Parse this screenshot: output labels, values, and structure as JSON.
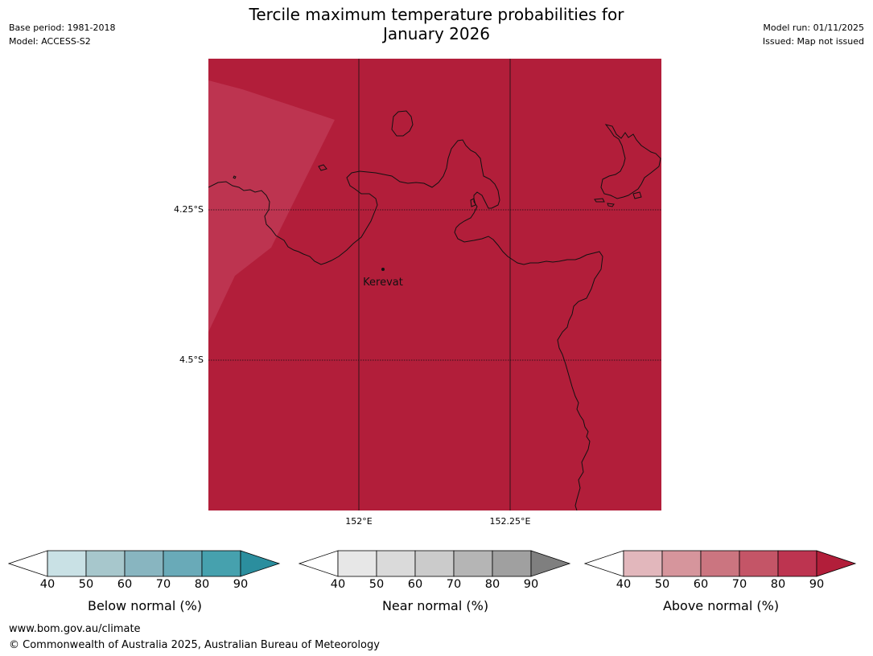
{
  "title_line1": "Tercile maximum temperature probabilities for",
  "title_line2": "January 2026",
  "meta_left": {
    "base_period": "Base period: 1981-2018",
    "model": "Model: ACCESS-S2"
  },
  "meta_right": {
    "model_run": "Model run: 01/11/2025",
    "issued": "Issued: Map not issued"
  },
  "map": {
    "lat_ticks": [
      "4.25°S",
      "4.5°S"
    ],
    "lon_ticks": [
      "152°E",
      "152.25°E"
    ],
    "place_label": "Kerevat",
    "fill_colors": {
      "above_80_90": "#b21e3a",
      "above_70_80": "#bd3450"
    }
  },
  "colorbars": [
    {
      "label": "Below normal (%)",
      "ticks": [
        "40",
        "50",
        "60",
        "70",
        "80",
        "90"
      ],
      "colors": [
        "#ffffff",
        "#c9e1e5",
        "#a7c7cc",
        "#88b5c0",
        "#69aab8",
        "#46a1ae",
        "#2b8e9e"
      ]
    },
    {
      "label": "Near normal (%)",
      "ticks": [
        "40",
        "50",
        "60",
        "70",
        "80",
        "90"
      ],
      "colors": [
        "#ffffff",
        "#e7e7e7",
        "#dadada",
        "#cbcbcb",
        "#b5b5b5",
        "#a0a0a0",
        "#7f7f7f"
      ]
    },
    {
      "label": "Above normal (%)",
      "ticks": [
        "40",
        "50",
        "60",
        "70",
        "80",
        "90"
      ],
      "colors": [
        "#ffffff",
        "#e2b7bc",
        "#d6959c",
        "#cb7580",
        "#c45567",
        "#bd3450",
        "#b21e3a"
      ]
    }
  ],
  "footer": {
    "url": "www.bom.gov.au/climate",
    "copyright": "© Commonwealth of Australia 2025, Australian Bureau of Meteorology"
  }
}
